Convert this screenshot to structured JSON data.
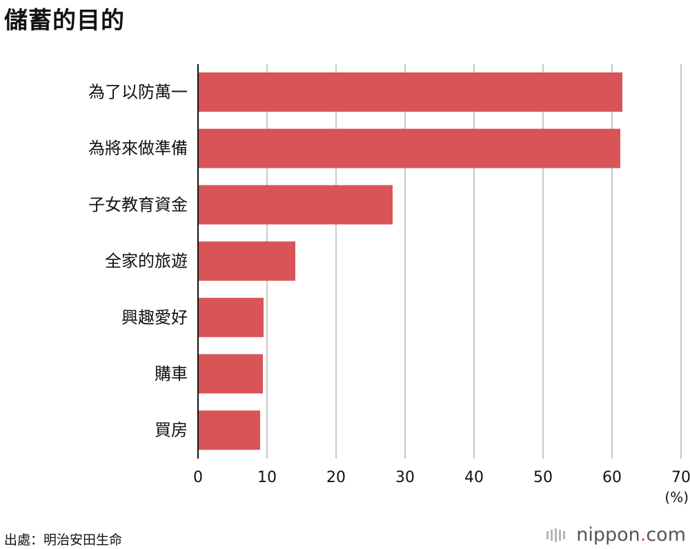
{
  "title": "儲蓄的目的",
  "source": "出處：明治安田生命",
  "brand": {
    "name": "nippon",
    "dot": ".",
    "tld": "com"
  },
  "colors": {
    "bar": "#d95457",
    "grid": "#c8c8c8",
    "axis": "#111111"
  },
  "chart_data": {
    "type": "bar",
    "orientation": "horizontal",
    "categories": [
      "為了以防萬一",
      "為將來做準備",
      "子女教育資金",
      "全家的旅遊",
      "興趣愛好",
      "購車",
      "買房"
    ],
    "values": [
      61.5,
      61.2,
      28.2,
      14.1,
      9.5,
      9.4,
      9.0
    ],
    "xlim": [
      0,
      70
    ],
    "xticks": [
      0,
      10,
      20,
      30,
      40,
      50,
      60,
      70
    ],
    "xlabel": "(%)",
    "grid": true
  }
}
